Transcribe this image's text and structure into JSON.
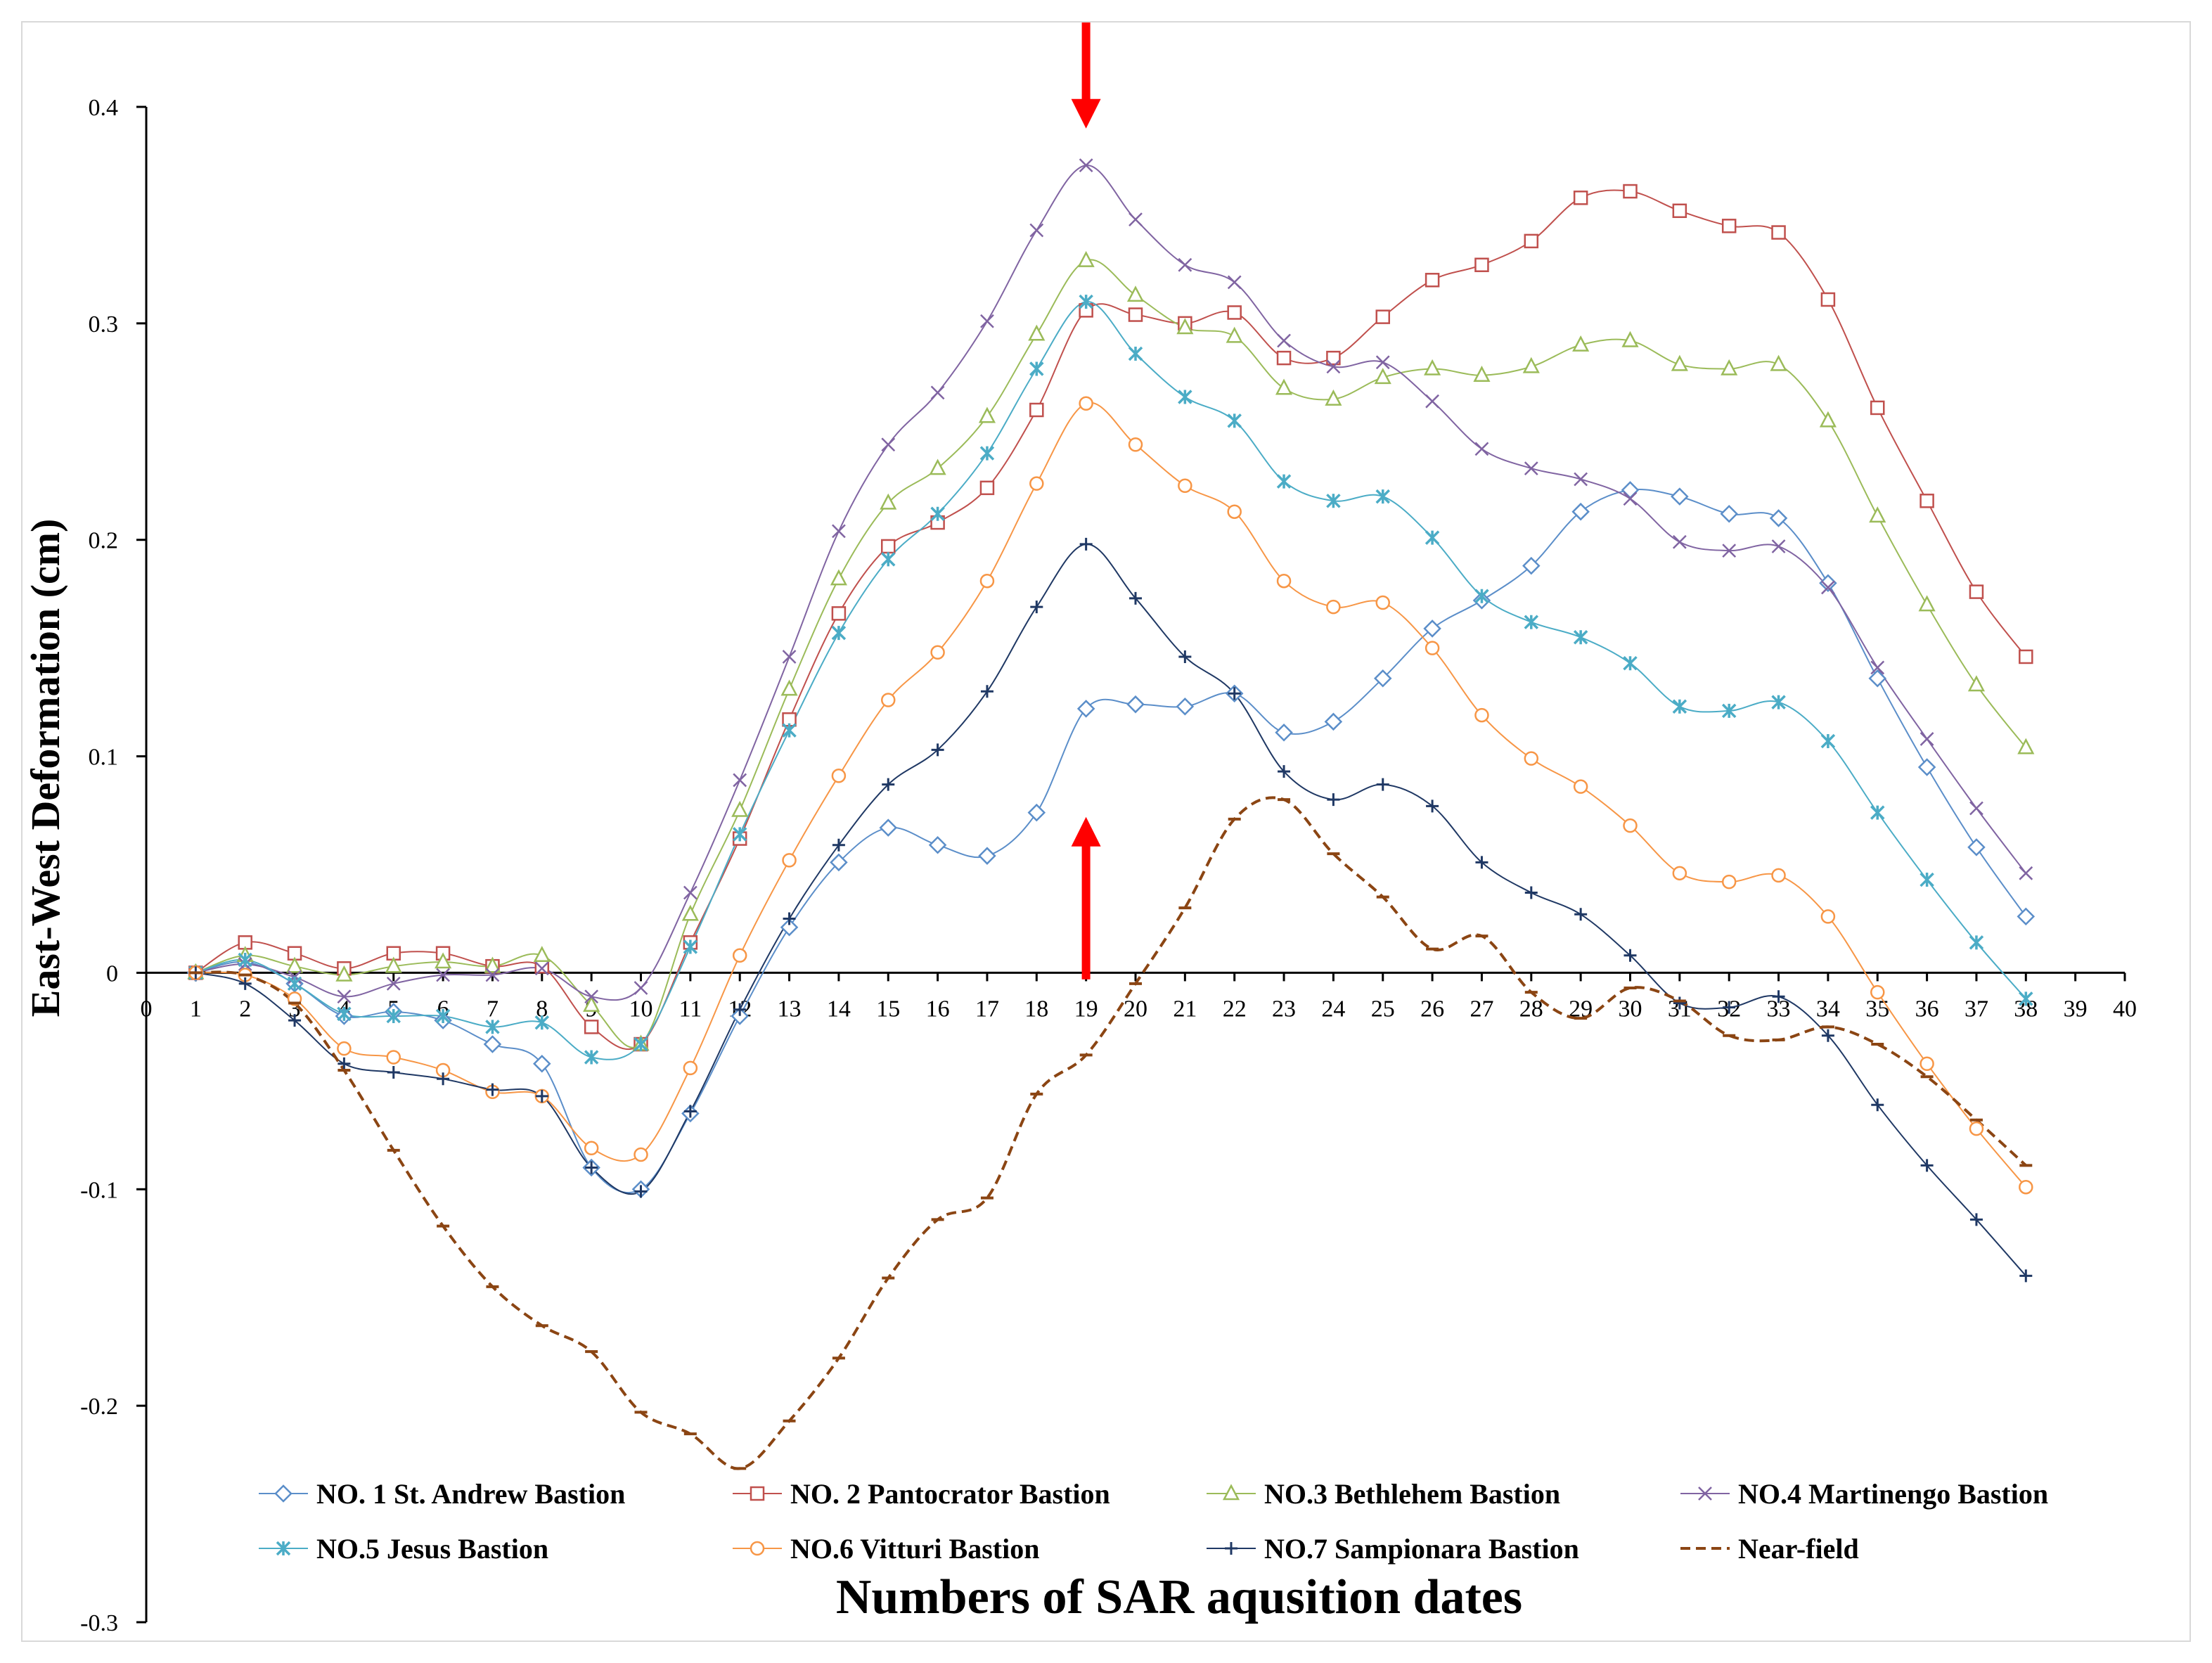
{
  "chart_data": {
    "type": "line",
    "title": "",
    "xlabel": "Numbers of SAR aqusition dates",
    "ylabel": "East-West Deformation (cm)",
    "xlim": [
      0,
      40
    ],
    "ylim": [
      -0.3,
      0.4
    ],
    "xticks": [
      "0",
      "1",
      "2",
      "3",
      "4",
      "5",
      "6",
      "7",
      "8",
      "9",
      "10",
      "11",
      "12",
      "13",
      "14",
      "15",
      "16",
      "17",
      "18",
      "19",
      "20",
      "21",
      "22",
      "23",
      "24",
      "25",
      "26",
      "27",
      "28",
      "29",
      "30",
      "31",
      "32",
      "33",
      "34",
      "35",
      "36",
      "37",
      "38",
      "39",
      "40"
    ],
    "yticks": [
      "0.4",
      "0.3",
      "0.2",
      "0.1",
      "0",
      "-0.1",
      "-0.2",
      "-0.3"
    ],
    "grid": false,
    "legend_position": "bottom",
    "annotations": [
      {
        "type": "arrow-down",
        "x": 19,
        "y_from": 0.45,
        "y_to": 0.39,
        "color": "#ff0000"
      },
      {
        "type": "arrow-up",
        "x": 19,
        "y_from": -0.003,
        "y_to": 0.072,
        "color": "#ff0000"
      }
    ],
    "x": [
      1,
      2,
      3,
      4,
      5,
      6,
      7,
      8,
      9,
      10,
      11,
      12,
      13,
      14,
      15,
      16,
      17,
      18,
      19,
      20,
      21,
      22,
      23,
      24,
      25,
      26,
      27,
      28,
      29,
      30,
      31,
      32,
      33,
      34,
      35,
      36,
      37,
      38
    ],
    "series": [
      {
        "name": "NO. 1 St. Andrew Bastion",
        "color": "#5b8ec9",
        "marker": "diamond",
        "dashed": false,
        "values": [
          0,
          0.005,
          -0.005,
          -0.02,
          -0.018,
          -0.022,
          -0.033,
          -0.042,
          -0.09,
          -0.1,
          -0.065,
          -0.02,
          0.021,
          0.051,
          0.067,
          0.059,
          0.054,
          0.074,
          0.122,
          0.124,
          0.123,
          0.129,
          0.111,
          0.116,
          0.136,
          0.159,
          0.172,
          0.188,
          0.213,
          0.223,
          0.22,
          0.212,
          0.21,
          0.18,
          0.136,
          0.095,
          0.058,
          0.026
        ]
      },
      {
        "name": "NO. 2 Pantocrator Bastion",
        "color": "#c0504d",
        "marker": "square",
        "dashed": false,
        "values": [
          0,
          0.014,
          0.009,
          0.002,
          0.009,
          0.009,
          0.003,
          0.003,
          -0.025,
          -0.033,
          0.014,
          0.062,
          0.117,
          0.166,
          0.197,
          0.208,
          0.224,
          0.26,
          0.306,
          0.304,
          0.3,
          0.305,
          0.284,
          0.284,
          0.303,
          0.32,
          0.327,
          0.338,
          0.358,
          0.361,
          0.352,
          0.345,
          0.342,
          0.311,
          0.261,
          0.218,
          0.176,
          0.146
        ]
      },
      {
        "name": "NO.3 Bethlehem Bastion",
        "color": "#9bbb59",
        "marker": "triangle",
        "dashed": false,
        "values": [
          0,
          0.008,
          0.003,
          -0.001,
          0.003,
          0.005,
          0.003,
          0.008,
          -0.015,
          -0.033,
          0.027,
          0.075,
          0.131,
          0.182,
          0.217,
          0.233,
          0.257,
          0.295,
          0.329,
          0.313,
          0.298,
          0.294,
          0.27,
          0.265,
          0.275,
          0.279,
          0.276,
          0.28,
          0.29,
          0.292,
          0.281,
          0.279,
          0.281,
          0.255,
          0.211,
          0.17,
          0.133,
          0.104
        ]
      },
      {
        "name": "NO.4 Martinengo Bastion",
        "color": "#8064a2",
        "marker": "x",
        "dashed": false,
        "values": [
          0,
          0.004,
          -0.002,
          -0.011,
          -0.005,
          -0.001,
          -0.001,
          0.002,
          -0.011,
          -0.007,
          0.037,
          0.089,
          0.146,
          0.204,
          0.244,
          0.268,
          0.301,
          0.343,
          0.373,
          0.348,
          0.327,
          0.319,
          0.292,
          0.28,
          0.282,
          0.264,
          0.242,
          0.233,
          0.228,
          0.219,
          0.199,
          0.195,
          0.197,
          0.178,
          0.141,
          0.108,
          0.076,
          0.046
        ]
      },
      {
        "name": "NO.5 Jesus Bastion",
        "color": "#4bacc6",
        "marker": "asterisk",
        "dashed": false,
        "values": [
          0,
          0.006,
          -0.005,
          -0.019,
          -0.02,
          -0.02,
          -0.025,
          -0.023,
          -0.039,
          -0.033,
          0.012,
          0.064,
          0.112,
          0.157,
          0.191,
          0.212,
          0.24,
          0.279,
          0.31,
          0.286,
          0.266,
          0.255,
          0.227,
          0.218,
          0.22,
          0.201,
          0.174,
          0.162,
          0.155,
          0.143,
          0.123,
          0.121,
          0.125,
          0.107,
          0.074,
          0.043,
          0.014,
          -0.012
        ]
      },
      {
        "name": "NO.6 Vitturi Bastion",
        "color": "#f79646",
        "marker": "circle",
        "dashed": false,
        "values": [
          0,
          -0.001,
          -0.012,
          -0.035,
          -0.039,
          -0.045,
          -0.055,
          -0.057,
          -0.081,
          -0.084,
          -0.044,
          0.008,
          0.052,
          0.091,
          0.126,
          0.148,
          0.181,
          0.226,
          0.263,
          0.244,
          0.225,
          0.213,
          0.181,
          0.169,
          0.171,
          0.15,
          0.119,
          0.099,
          0.086,
          0.068,
          0.046,
          0.042,
          0.045,
          0.026,
          -0.009,
          -0.042,
          -0.072,
          -0.099
        ]
      },
      {
        "name": "NO.7 Sampionara Bastion",
        "color": "#1f3864",
        "marker": "plus",
        "dashed": false,
        "values": [
          0,
          -0.005,
          -0.022,
          -0.042,
          -0.046,
          -0.049,
          -0.054,
          -0.057,
          -0.09,
          -0.101,
          -0.064,
          -0.017,
          0.025,
          0.059,
          0.087,
          0.103,
          0.13,
          0.169,
          0.198,
          0.173,
          0.146,
          0.129,
          0.093,
          0.08,
          0.087,
          0.077,
          0.051,
          0.037,
          0.027,
          0.008,
          -0.014,
          -0.016,
          -0.011,
          -0.029,
          -0.061,
          -0.089,
          -0.114,
          -0.14
        ]
      },
      {
        "name": "Near-field",
        "color": "#8b4513",
        "marker": "dash",
        "dashed": true,
        "values": [
          0,
          -0.001,
          -0.014,
          -0.045,
          -0.082,
          -0.117,
          -0.145,
          -0.163,
          -0.175,
          -0.203,
          -0.213,
          -0.229,
          -0.207,
          -0.178,
          -0.141,
          -0.114,
          -0.104,
          -0.056,
          -0.038,
          -0.005,
          0.03,
          0.071,
          0.08,
          0.055,
          0.035,
          0.011,
          0.017,
          -0.009,
          -0.021,
          -0.007,
          -0.013,
          -0.029,
          -0.031,
          -0.025,
          -0.033,
          -0.048,
          -0.068,
          -0.089
        ]
      }
    ]
  }
}
